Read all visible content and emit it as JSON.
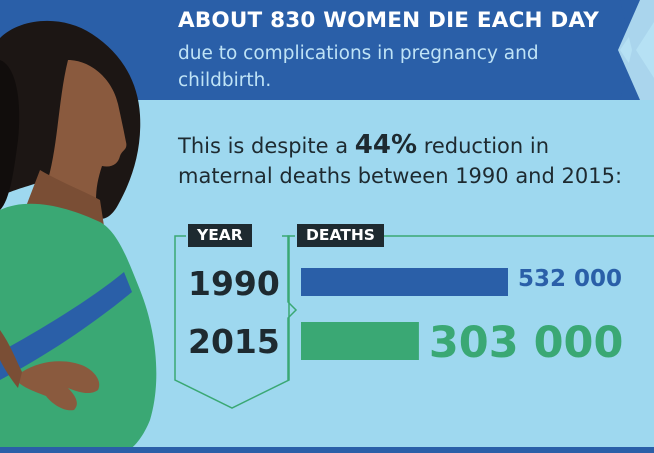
{
  "headline": "ABOUT 830 WOMEN DIE EACH DAY",
  "subline_1": "due to complications in pregnancy and",
  "subline_2": "childbirth.",
  "despite_prefix": "This is despite a",
  "despite_pct": "44%",
  "despite_suffix": "reduction in",
  "despite_line2": "maternal deaths between 1990 and 2015:",
  "colors": {
    "background": "#9ed8ef",
    "banner": "#2a5fa8",
    "bar_1990": "#2a5fa8",
    "bar_2015": "#3aa874",
    "dark": "#1e2a30"
  },
  "chart_data": {
    "type": "bar",
    "orientation": "horizontal",
    "column_headers": {
      "category": "YEAR",
      "value": "DEATHS"
    },
    "categories": [
      "1990",
      "2015"
    ],
    "values": [
      532000,
      303000
    ],
    "value_labels": [
      "532 000",
      "303 000"
    ]
  }
}
